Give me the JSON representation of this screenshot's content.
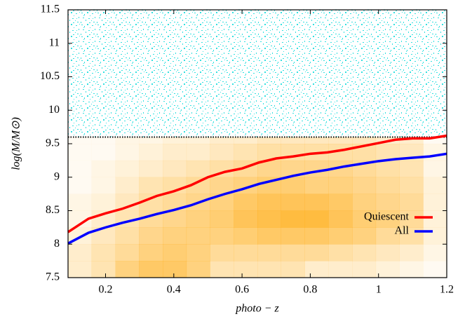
{
  "chart_data": {
    "type": "line",
    "xlabel": "photo − z",
    "ylabel": "log(M/M⊙)",
    "xlim": [
      0.09,
      1.2
    ],
    "ylim": [
      7.5,
      11.5
    ],
    "xticks": [
      0.2,
      0.4,
      0.6,
      0.8,
      1,
      1.2
    ],
    "yticks": [
      7.5,
      8,
      8.5,
      9,
      9.5,
      10,
      10.5,
      11,
      11.5
    ],
    "threshold": 9.6,
    "legend": "lower right",
    "heatmap": {
      "color": "#ffa500",
      "xbins": [
        0.09,
        0.159,
        0.229,
        0.298,
        0.368,
        0.437,
        0.506,
        0.576,
        0.645,
        0.714,
        0.784,
        0.853,
        0.923,
        0.992,
        1.061,
        1.131,
        1.2
      ],
      "ybins": [
        7.5,
        7.75,
        8,
        8.25,
        8.5,
        8.75,
        9,
        9.25,
        9.5,
        9.6
      ],
      "values": [
        [
          0.2,
          0.3,
          0.5,
          0.6,
          0.6,
          0.5,
          0.3,
          0.3,
          0.3,
          0.3,
          0.2,
          0.2,
          0.2,
          0.15,
          0.1,
          0.05
        ],
        [
          0.2,
          0.3,
          0.4,
          0.5,
          0.55,
          0.5,
          0.4,
          0.4,
          0.4,
          0.4,
          0.4,
          0.35,
          0.3,
          0.25,
          0.2,
          0.1
        ],
        [
          0.15,
          0.25,
          0.35,
          0.45,
          0.5,
          0.5,
          0.5,
          0.55,
          0.6,
          0.6,
          0.6,
          0.55,
          0.5,
          0.4,
          0.35,
          0.15
        ],
        [
          0.1,
          0.2,
          0.3,
          0.4,
          0.45,
          0.5,
          0.55,
          0.65,
          0.7,
          0.75,
          0.75,
          0.65,
          0.55,
          0.5,
          0.4,
          0.15
        ],
        [
          0.1,
          0.15,
          0.25,
          0.35,
          0.4,
          0.45,
          0.5,
          0.6,
          0.65,
          0.65,
          0.65,
          0.6,
          0.5,
          0.45,
          0.4,
          0.15
        ],
        [
          0.05,
          0.1,
          0.2,
          0.3,
          0.35,
          0.4,
          0.45,
          0.5,
          0.55,
          0.55,
          0.5,
          0.5,
          0.45,
          0.4,
          0.35,
          0.15
        ],
        [
          0.05,
          0.1,
          0.15,
          0.2,
          0.25,
          0.3,
          0.35,
          0.4,
          0.45,
          0.45,
          0.45,
          0.45,
          0.4,
          0.35,
          0.3,
          0.1
        ],
        [
          0.05,
          0.05,
          0.1,
          0.15,
          0.2,
          0.2,
          0.25,
          0.3,
          0.35,
          0.35,
          0.35,
          0.35,
          0.35,
          0.3,
          0.25,
          0.1
        ],
        [
          0.05,
          0.05,
          0.1,
          0.1,
          0.15,
          0.15,
          0.2,
          0.2,
          0.25,
          0.25,
          0.25,
          0.25,
          0.25,
          0.2,
          0.2,
          0.05
        ]
      ]
    },
    "x": [
      0.09,
      0.15,
      0.2,
      0.25,
      0.3,
      0.35,
      0.4,
      0.45,
      0.5,
      0.55,
      0.6,
      0.65,
      0.7,
      0.75,
      0.8,
      0.85,
      0.9,
      0.95,
      1.0,
      1.05,
      1.1,
      1.15,
      1.2
    ],
    "series": [
      {
        "name": "Quiescent",
        "color": "#ff0000",
        "values": [
          8.18,
          8.38,
          8.46,
          8.53,
          8.62,
          8.72,
          8.79,
          8.88,
          9.0,
          9.08,
          9.13,
          9.22,
          9.28,
          9.31,
          9.35,
          9.37,
          9.41,
          9.46,
          9.51,
          9.56,
          9.58,
          9.58,
          9.62
        ]
      },
      {
        "name": "All",
        "color": "#0000ff",
        "values": [
          8.01,
          8.17,
          8.25,
          8.32,
          8.38,
          8.45,
          8.51,
          8.58,
          8.67,
          8.75,
          8.82,
          8.9,
          8.96,
          9.02,
          9.07,
          9.11,
          9.16,
          9.2,
          9.24,
          9.27,
          9.29,
          9.31,
          9.35
        ]
      }
    ]
  }
}
